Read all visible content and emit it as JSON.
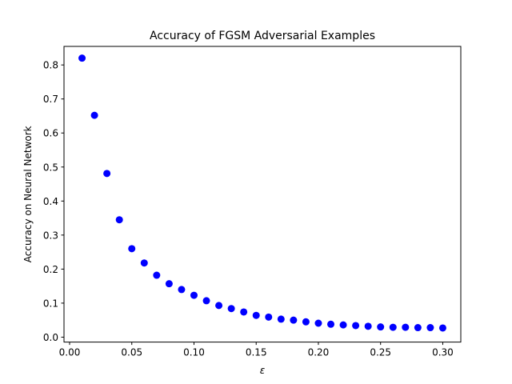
{
  "chart_data": {
    "type": "scatter",
    "title": "Accuracy of FGSM Adversarial Examples",
    "xlabel": "ε",
    "ylabel": "Accuracy on Neural Network",
    "xlim": [
      -0.0045,
      0.3145
    ],
    "ylim": [
      -0.0145,
      0.8545
    ],
    "xticks": [
      0.0,
      0.05,
      0.1,
      0.15,
      0.2,
      0.25,
      0.3
    ],
    "xtick_labels": [
      "0.00",
      "0.05",
      "0.10",
      "0.15",
      "0.20",
      "0.25",
      "0.30"
    ],
    "yticks": [
      0.0,
      0.1,
      0.2,
      0.3,
      0.4,
      0.5,
      0.6,
      0.7,
      0.8
    ],
    "ytick_labels": [
      "0.0",
      "0.1",
      "0.2",
      "0.3",
      "0.4",
      "0.5",
      "0.6",
      "0.7",
      "0.8"
    ],
    "grid": false,
    "marker_color": "#0000ff",
    "series": [
      {
        "x": [
          0.01,
          0.02,
          0.03,
          0.04,
          0.05,
          0.06,
          0.07,
          0.08,
          0.09,
          0.1,
          0.11,
          0.12,
          0.13,
          0.14,
          0.15,
          0.16,
          0.17,
          0.18,
          0.19,
          0.2,
          0.21,
          0.22,
          0.23,
          0.24,
          0.25,
          0.26,
          0.27,
          0.28,
          0.29,
          0.3
        ],
        "y": [
          0.82,
          0.652,
          0.481,
          0.345,
          0.26,
          0.218,
          0.182,
          0.157,
          0.14,
          0.123,
          0.107,
          0.093,
          0.084,
          0.074,
          0.064,
          0.059,
          0.053,
          0.05,
          0.045,
          0.041,
          0.038,
          0.036,
          0.034,
          0.032,
          0.03,
          0.029,
          0.029,
          0.028,
          0.028,
          0.027
        ]
      }
    ]
  }
}
